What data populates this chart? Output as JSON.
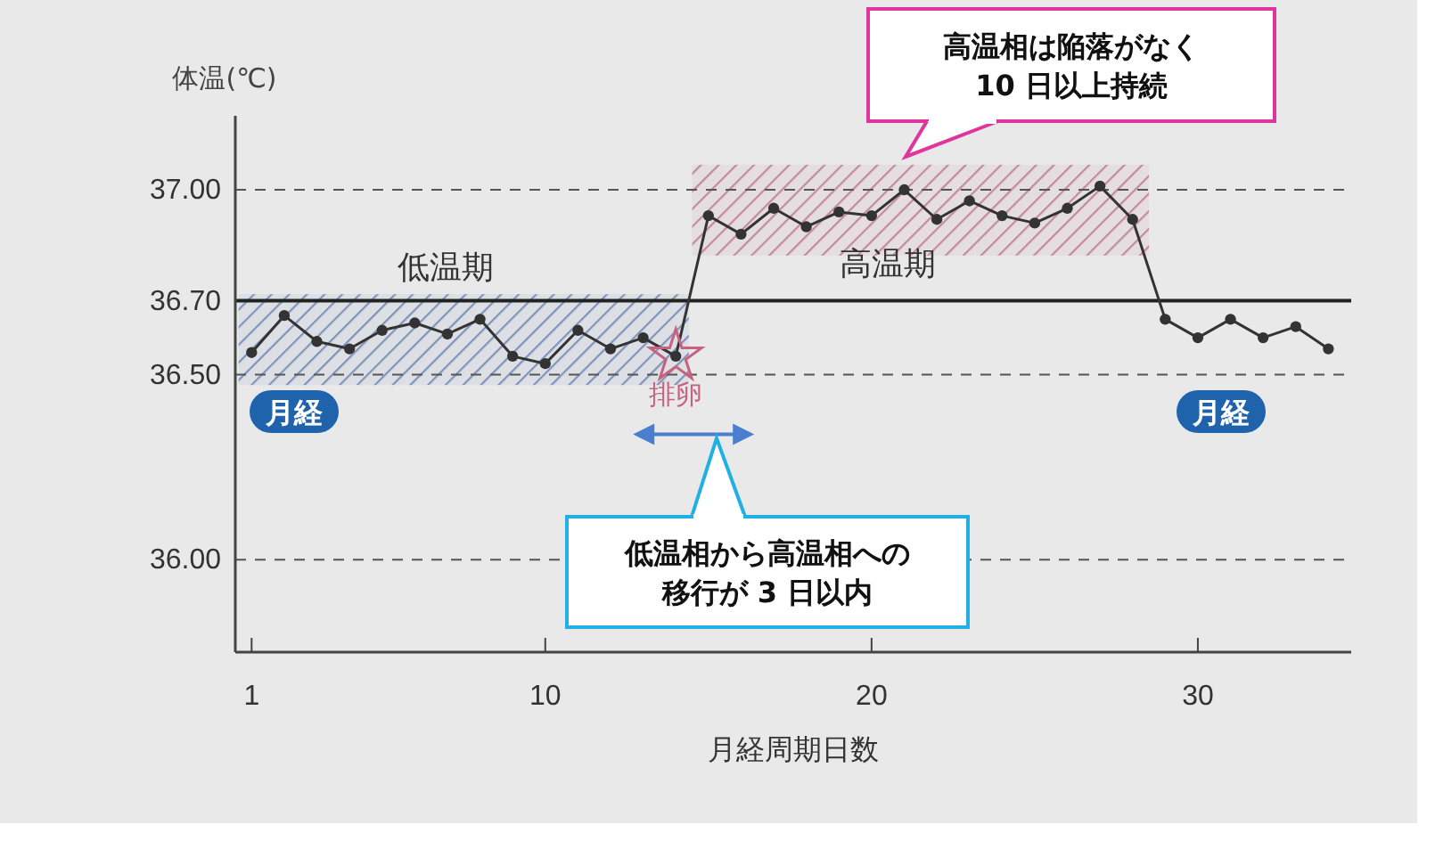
{
  "chart_data": {
    "type": "line",
    "xlabel": "月経周期日数",
    "ylabel": "体温(℃)",
    "x": [
      1,
      2,
      3,
      4,
      5,
      6,
      7,
      8,
      9,
      10,
      11,
      12,
      13,
      14,
      15,
      16,
      17,
      18,
      19,
      20,
      21,
      22,
      23,
      24,
      25,
      26,
      27,
      28,
      29,
      30,
      31,
      32,
      33,
      34
    ],
    "series": [
      {
        "color": "#333333",
        "marker": "circle",
        "values": [
          36.56,
          36.66,
          36.59,
          36.57,
          36.62,
          36.64,
          36.61,
          36.65,
          36.55,
          36.53,
          36.62,
          36.57,
          36.6,
          36.55,
          36.93,
          36.88,
          36.95,
          36.9,
          36.94,
          36.93,
          37.0,
          36.92,
          36.97,
          36.93,
          36.91,
          36.95,
          37.01,
          36.92,
          36.65,
          36.6,
          36.65,
          36.6,
          36.63,
          36.57
        ]
      },
      {
        "type": "scatter",
        "color": "#c8607e",
        "marker": "star",
        "x": [
          14
        ],
        "values": [
          36.55
        ]
      }
    ],
    "xlim": [
      0.5,
      34.7
    ],
    "ylim": [
      35.75,
      37.2
    ],
    "xticks": [
      1,
      10,
      20,
      30
    ],
    "yticks": [
      {
        "value": 36,
        "label": "36.00"
      },
      {
        "value": 36.5,
        "label": "36.50"
      },
      {
        "value": 36.7,
        "label": "36.70"
      },
      {
        "value": 37,
        "label": "37.00"
      }
    ],
    "ref_lines": [
      {
        "axis": "y",
        "value": 37,
        "line_style": "dashed",
        "color": "#555555"
      },
      {
        "axis": "y",
        "value": 36.7,
        "line_style": "solid",
        "color": "#222222"
      },
      {
        "axis": "y",
        "value": 36.5,
        "line_style": "dashed",
        "color": "#555555"
      },
      {
        "axis": "y",
        "value": 36,
        "line_style": "dashed",
        "color": "#555555"
      }
    ],
    "bands": [
      {
        "axis": "x",
        "from": 0.6,
        "to": 14.4,
        "color": "#8094bb"
      },
      {
        "axis": "x",
        "from": 14.5,
        "to": 28.5,
        "color": "#c48a9c"
      }
    ],
    "annotations": [
      "低温期",
      {
        "text": "高温期",
        "x": 20.5,
        "y": 36.8
      },
      "月経",
      "月経",
      {
        "text": "排卵",
        "x": 14,
        "y": 36.45
      },
      "高温相は陥落がなく",
      "10 日以上持続",
      "低温相から高温相への",
      "移行が 3 日以内"
    ]
  }
}
